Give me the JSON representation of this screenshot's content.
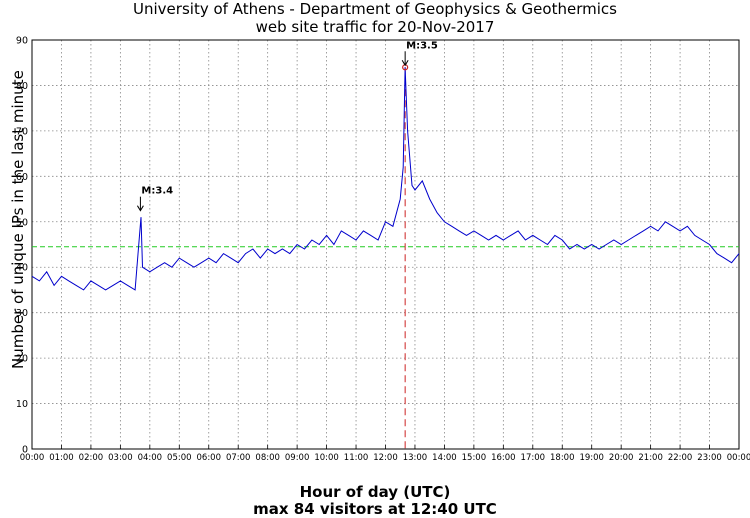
{
  "chart_data": {
    "type": "line",
    "title": "University of Athens - Department of Geophysics & Geothermics",
    "subtitle": "web site traffic for 20-Nov-2017",
    "xlabel": "Hour of day (UTC)",
    "ylabel": "Number of unique IPs in the last minute",
    "footer": "max 84 visitors at 12:40 UTC",
    "xlim_hours": [
      0,
      24
    ],
    "ylim": [
      0,
      90
    ],
    "yticks": [
      0,
      10,
      20,
      30,
      40,
      50,
      60,
      70,
      80,
      90
    ],
    "xtick_labels": [
      "00:00",
      "01:00",
      "02:00",
      "03:00",
      "04:00",
      "05:00",
      "06:00",
      "07:00",
      "08:00",
      "09:00",
      "10:00",
      "11:00",
      "12:00",
      "13:00",
      "14:00",
      "15:00",
      "16:00",
      "17:00",
      "18:00",
      "19:00",
      "20:00",
      "21:00",
      "22:00",
      "23:00",
      "00:00"
    ],
    "grid": true,
    "mean_line": {
      "value": 44.5,
      "color": "#22cc22"
    },
    "max_point": {
      "time": "12:40",
      "hour": 12.667,
      "value": 84,
      "color": "#cc2222"
    },
    "annotations": [
      {
        "label": "M:3.4",
        "time": "03:41",
        "hour": 3.68,
        "value": 52
      },
      {
        "label": "M:3.5",
        "time": "12:40",
        "hour": 12.667,
        "value": 84
      }
    ],
    "series": [
      {
        "color": "#0000cc",
        "hours": [
          0,
          0.25,
          0.5,
          0.75,
          1,
          1.25,
          1.5,
          1.75,
          2,
          2.25,
          2.5,
          2.75,
          3,
          3.25,
          3.5,
          3.65,
          3.7,
          3.75,
          4,
          4.25,
          4.5,
          4.75,
          5,
          5.25,
          5.5,
          5.75,
          6,
          6.25,
          6.5,
          6.75,
          7,
          7.25,
          7.5,
          7.75,
          8,
          8.25,
          8.5,
          8.75,
          9,
          9.25,
          9.5,
          9.75,
          10,
          10.25,
          10.5,
          10.75,
          11,
          11.25,
          11.5,
          11.75,
          12,
          12.25,
          12.5,
          12.6,
          12.667,
          12.75,
          12.9,
          13,
          13.25,
          13.5,
          13.75,
          14,
          14.25,
          14.5,
          14.75,
          15,
          15.25,
          15.5,
          15.75,
          16,
          16.25,
          16.5,
          16.75,
          17,
          17.25,
          17.5,
          17.75,
          18,
          18.25,
          18.5,
          18.75,
          19,
          19.25,
          19.5,
          19.75,
          20,
          20.25,
          20.5,
          20.75,
          21,
          21.25,
          21.5,
          21.75,
          22,
          22.25,
          22.5,
          22.75,
          23,
          23.25,
          23.5,
          23.75,
          24
        ],
        "values": [
          38,
          37,
          39,
          36,
          38,
          37,
          36,
          35,
          37,
          36,
          35,
          36,
          37,
          36,
          35,
          47,
          51,
          40,
          39,
          40,
          41,
          40,
          42,
          41,
          40,
          41,
          42,
          41,
          43,
          42,
          41,
          43,
          44,
          42,
          44,
          43,
          44,
          43,
          45,
          44,
          46,
          45,
          47,
          45,
          48,
          47,
          46,
          48,
          47,
          46,
          50,
          49,
          55,
          62,
          84,
          70,
          58,
          57,
          59,
          55,
          52,
          50,
          49,
          48,
          47,
          48,
          47,
          46,
          47,
          46,
          47,
          48,
          46,
          47,
          46,
          45,
          47,
          46,
          44,
          45,
          44,
          45,
          44,
          45,
          46,
          45,
          46,
          47,
          48,
          49,
          48,
          50,
          49,
          48,
          49,
          47,
          46,
          45,
          43,
          42,
          41,
          43
        ]
      }
    ]
  }
}
